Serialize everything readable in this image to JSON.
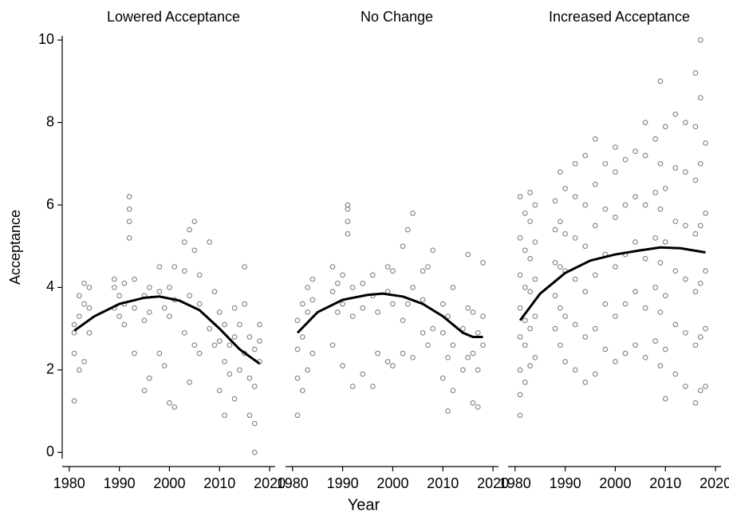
{
  "chart_data": {
    "type": "scatter",
    "ylabel": "Acceptance",
    "xlabel": "Year",
    "ylim": [
      -0.15,
      10.1
    ],
    "yticks": [
      0,
      2,
      4,
      6,
      8,
      10
    ],
    "xlim": [
      1978.6,
      2021.1
    ],
    "xticks": [
      1980,
      1990,
      2000,
      2010,
      2020
    ],
    "point_color": "#808080",
    "line_color": "#000000",
    "panels": [
      {
        "title": "Lowered Acceptance",
        "points": {
          "x": [
            1981,
            1981,
            1981,
            1981,
            1982,
            1982,
            1982,
            1983,
            1983,
            1983,
            1984,
            1984,
            1984,
            1989,
            1989,
            1989,
            1990,
            1990,
            1991,
            1991,
            1991,
            1992,
            1992,
            1992,
            1992,
            1993,
            1993,
            1993,
            1995,
            1995,
            1995,
            1996,
            1996,
            1996,
            1998,
            1998,
            1998,
            1999,
            1999,
            2000,
            2000,
            2000,
            2001,
            2001,
            2001,
            2003,
            2003,
            2003,
            2004,
            2004,
            2004,
            2005,
            2005,
            2005,
            2006,
            2006,
            2006,
            2008,
            2008,
            2009,
            2009,
            2010,
            2010,
            2010,
            2011,
            2011,
            2011,
            2012,
            2012,
            2013,
            2013,
            2013,
            2014,
            2014,
            2015,
            2015,
            2015,
            2016,
            2016,
            2016,
            2017,
            2017,
            2017,
            2017,
            2018,
            2018,
            2018
          ],
          "values": [
            1.25,
            2.4,
            2.9,
            3.1,
            2.0,
            3.3,
            3.8,
            2.2,
            3.6,
            4.1,
            2.9,
            3.5,
            4.0,
            3.5,
            4.0,
            4.2,
            3.3,
            3.8,
            3.1,
            3.6,
            4.1,
            5.2,
            5.6,
            5.9,
            6.2,
            2.4,
            3.5,
            4.2,
            1.5,
            3.2,
            3.8,
            1.8,
            3.4,
            4.0,
            2.4,
            3.9,
            4.5,
            2.1,
            3.5,
            1.2,
            3.3,
            4.0,
            1.1,
            3.7,
            4.5,
            2.9,
            4.4,
            5.1,
            1.7,
            3.8,
            5.4,
            2.6,
            4.9,
            5.6,
            2.4,
            3.6,
            4.3,
            3.0,
            5.1,
            2.6,
            3.9,
            1.5,
            2.7,
            3.4,
            0.9,
            2.2,
            3.1,
            1.9,
            2.6,
            1.3,
            2.8,
            3.5,
            2.0,
            3.1,
            2.4,
            3.6,
            4.5,
            0.9,
            1.8,
            2.8,
            0.0,
            0.7,
            1.6,
            2.5,
            2.2,
            2.7,
            3.1
          ]
        },
        "trend": {
          "x": [
            1981,
            1985,
            1990,
            1995,
            1998,
            2002,
            2006,
            2010,
            2014,
            2018
          ],
          "values": [
            2.95,
            3.3,
            3.6,
            3.75,
            3.78,
            3.68,
            3.45,
            3.0,
            2.5,
            2.15
          ]
        }
      },
      {
        "title": "No Change",
        "points": {
          "x": [
            1981,
            1981,
            1981,
            1981,
            1982,
            1982,
            1982,
            1983,
            1983,
            1983,
            1984,
            1984,
            1984,
            1988,
            1988,
            1988,
            1989,
            1989,
            1990,
            1990,
            1990,
            1991,
            1991,
            1991,
            1991,
            1992,
            1992,
            1992,
            1994,
            1994,
            1994,
            1996,
            1996,
            1996,
            1997,
            1997,
            1999,
            1999,
            1999,
            2000,
            2000,
            2000,
            2002,
            2002,
            2002,
            2003,
            2003,
            2004,
            2004,
            2004,
            2006,
            2006,
            2006,
            2007,
            2007,
            2008,
            2008,
            2010,
            2010,
            2010,
            2011,
            2011,
            2011,
            2012,
            2012,
            2012,
            2014,
            2014,
            2015,
            2015,
            2015,
            2016,
            2016,
            2016,
            2017,
            2017,
            2017,
            2018,
            2018,
            2018
          ],
          "values": [
            0.9,
            1.8,
            2.5,
            3.2,
            1.5,
            2.8,
            3.6,
            2.0,
            3.4,
            4.0,
            2.4,
            3.7,
            4.2,
            2.6,
            3.9,
            4.5,
            3.4,
            4.1,
            2.1,
            3.6,
            4.3,
            5.3,
            5.6,
            5.9,
            6.0,
            1.6,
            3.3,
            4.0,
            1.9,
            3.5,
            4.1,
            1.6,
            3.8,
            4.3,
            2.4,
            3.4,
            2.2,
            3.9,
            4.5,
            2.1,
            3.6,
            4.4,
            2.4,
            3.2,
            5.0,
            3.6,
            5.4,
            2.3,
            4.0,
            5.8,
            2.9,
            3.7,
            4.4,
            2.6,
            4.5,
            3.0,
            4.9,
            1.8,
            2.9,
            3.6,
            1.0,
            2.3,
            3.3,
            1.5,
            2.6,
            4.0,
            2.0,
            3.0,
            2.3,
            3.5,
            4.8,
            1.2,
            2.4,
            3.4,
            1.1,
            2.0,
            2.9,
            2.6,
            3.3,
            4.6
          ]
        },
        "trend": {
          "x": [
            1981,
            1985,
            1990,
            1995,
            1998,
            2002,
            2006,
            2010,
            2014,
            2016,
            2018
          ],
          "values": [
            2.9,
            3.4,
            3.7,
            3.82,
            3.85,
            3.78,
            3.6,
            3.3,
            2.9,
            2.8,
            2.8
          ]
        }
      },
      {
        "title": "Increased Acceptance",
        "points": {
          "x": [
            1981,
            1981,
            1981,
            1981,
            1981,
            1981,
            1981,
            1981,
            1982,
            1982,
            1982,
            1982,
            1982,
            1982,
            1983,
            1983,
            1983,
            1983,
            1983,
            1983,
            1984,
            1984,
            1984,
            1984,
            1984,
            1988,
            1988,
            1988,
            1988,
            1988,
            1989,
            1989,
            1989,
            1989,
            1989,
            1990,
            1990,
            1990,
            1990,
            1990,
            1992,
            1992,
            1992,
            1992,
            1992,
            1992,
            1994,
            1994,
            1994,
            1994,
            1994,
            1994,
            1996,
            1996,
            1996,
            1996,
            1996,
            1996,
            1998,
            1998,
            1998,
            1998,
            1998,
            2000,
            2000,
            2000,
            2000,
            2000,
            2000,
            2002,
            2002,
            2002,
            2002,
            2002,
            2004,
            2004,
            2004,
            2004,
            2004,
            2006,
            2006,
            2006,
            2006,
            2006,
            2006,
            2008,
            2008,
            2008,
            2008,
            2008,
            2009,
            2009,
            2009,
            2009,
            2009,
            2009,
            2010,
            2010,
            2010,
            2010,
            2010,
            2010,
            2012,
            2012,
            2012,
            2012,
            2012,
            2012,
            2014,
            2014,
            2014,
            2014,
            2014,
            2014,
            2016,
            2016,
            2016,
            2016,
            2016,
            2016,
            2016,
            2017,
            2017,
            2017,
            2017,
            2017,
            2017,
            2017,
            2018,
            2018,
            2018,
            2018,
            2018
          ],
          "values": [
            0.9,
            1.4,
            2.0,
            2.8,
            3.5,
            4.3,
            5.2,
            6.2,
            1.7,
            2.6,
            3.2,
            4.0,
            4.9,
            5.8,
            2.1,
            3.0,
            3.9,
            4.7,
            5.6,
            6.3,
            2.3,
            3.3,
            4.2,
            5.1,
            6.0,
            3.0,
            3.8,
            4.6,
            5.4,
            6.1,
            2.6,
            3.5,
            4.5,
            5.6,
            6.8,
            2.2,
            3.3,
            4.4,
            5.3,
            6.4,
            2.0,
            3.1,
            4.2,
            5.2,
            6.2,
            7.0,
            1.7,
            2.8,
            3.9,
            5.0,
            6.0,
            7.2,
            1.9,
            3.0,
            4.3,
            5.5,
            6.5,
            7.6,
            2.5,
            3.6,
            4.8,
            5.9,
            7.0,
            2.2,
            3.3,
            4.5,
            5.7,
            6.8,
            7.4,
            2.4,
            3.6,
            4.8,
            6.0,
            7.1,
            2.6,
            3.9,
            5.1,
            6.2,
            7.3,
            2.3,
            3.5,
            4.7,
            6.0,
            7.2,
            8.0,
            2.7,
            4.0,
            5.2,
            6.3,
            7.6,
            2.1,
            3.4,
            4.6,
            5.9,
            7.0,
            9.0,
            1.3,
            2.5,
            3.8,
            5.1,
            6.4,
            7.9,
            1.9,
            3.1,
            4.4,
            5.6,
            6.9,
            8.2,
            1.6,
            2.9,
            4.2,
            5.5,
            6.8,
            8.0,
            1.2,
            2.6,
            3.9,
            5.3,
            6.6,
            7.9,
            9.2,
            1.5,
            2.8,
            4.1,
            5.5,
            7.0,
            8.6,
            10.0,
            1.6,
            3.0,
            4.4,
            5.8,
            7.5
          ]
        },
        "trend": {
          "x": [
            1981,
            1985,
            1990,
            1995,
            2000,
            2005,
            2009,
            2013,
            2018
          ],
          "values": [
            3.2,
            3.85,
            4.35,
            4.65,
            4.8,
            4.9,
            4.97,
            4.95,
            4.85
          ]
        }
      }
    ]
  }
}
